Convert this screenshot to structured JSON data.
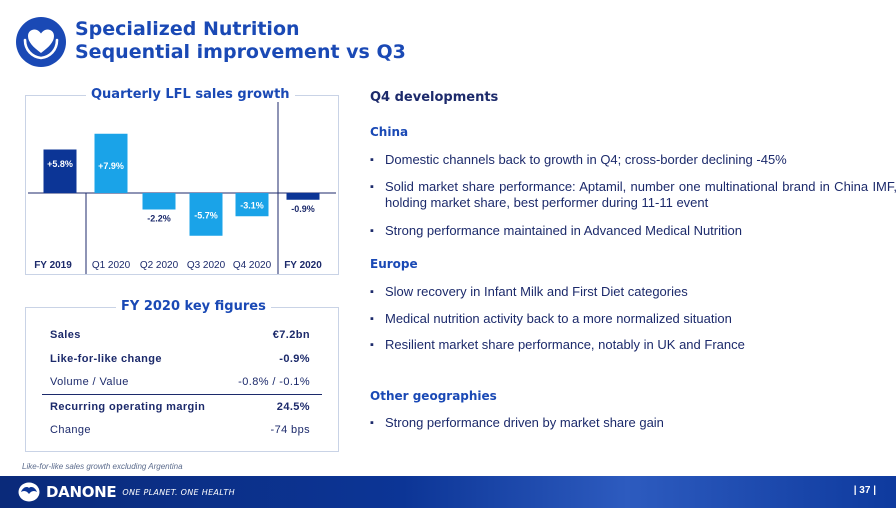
{
  "header": {
    "title_line1": "Specialized Nutrition",
    "title_line2": "Sequential improvement vs Q3",
    "logo_icon": "heart-in-hands-icon",
    "accent_color": "#1a49b5",
    "navy_color": "#1c2a6b"
  },
  "chart_data": {
    "type": "bar",
    "title": "Quarterly LFL sales growth",
    "categories": [
      "FY 2019",
      "Q1 2020",
      "Q2 2020",
      "Q3 2020",
      "Q4 2020",
      "FY 2020"
    ],
    "values": [
      5.8,
      7.9,
      -2.2,
      -5.7,
      -3.1,
      -0.9
    ],
    "labels": [
      "+5.8%",
      "+7.9%",
      "-2.2%",
      "-5.7%",
      "-3.1%",
      "-0.9%"
    ],
    "bar_colors": [
      "#0c3596",
      "#1aa3e8",
      "#1aa3e8",
      "#1aa3e8",
      "#1aa3e8",
      "#0c3596"
    ],
    "ylim": [
      -8,
      10
    ]
  },
  "key_figures": {
    "title": "FY 2020 key figures",
    "rows": [
      {
        "label": "Sales",
        "value": "€7.2bn"
      },
      {
        "label": "Like-for-like change",
        "value": "-0.9%"
      },
      {
        "label": "Volume / Value",
        "value": "-0.8% / -0.1%"
      },
      {
        "label": "Recurring operating margin",
        "value": "24.5%"
      },
      {
        "label": "Change",
        "value": "-74 bps"
      }
    ]
  },
  "developments": {
    "heading": "Q4 developments",
    "china": {
      "title": "China",
      "bullets": [
        "Domestic channels back to growth in Q4; cross-border declining -45%",
        "Solid market share performance: Aptamil, number one multinational brand in China IMF, holding market share, best performer during 11-11 event",
        "Strong performance maintained in Advanced Medical Nutrition"
      ]
    },
    "europe": {
      "title": "Europe",
      "bullets": [
        "Slow recovery in Infant Milk and First Diet categories",
        "Medical nutrition activity back to a more normalized situation",
        "Resilient market share performance, notably in UK and France"
      ]
    },
    "other": {
      "title": "Other geographies",
      "bullets": [
        "Strong performance driven by market share gain"
      ]
    }
  },
  "footnote": "Like-for-like sales growth excluding Argentina",
  "footer": {
    "brand": "DANONE",
    "tagline": "ONE PLANET. ONE HEALTH",
    "page": "37"
  }
}
